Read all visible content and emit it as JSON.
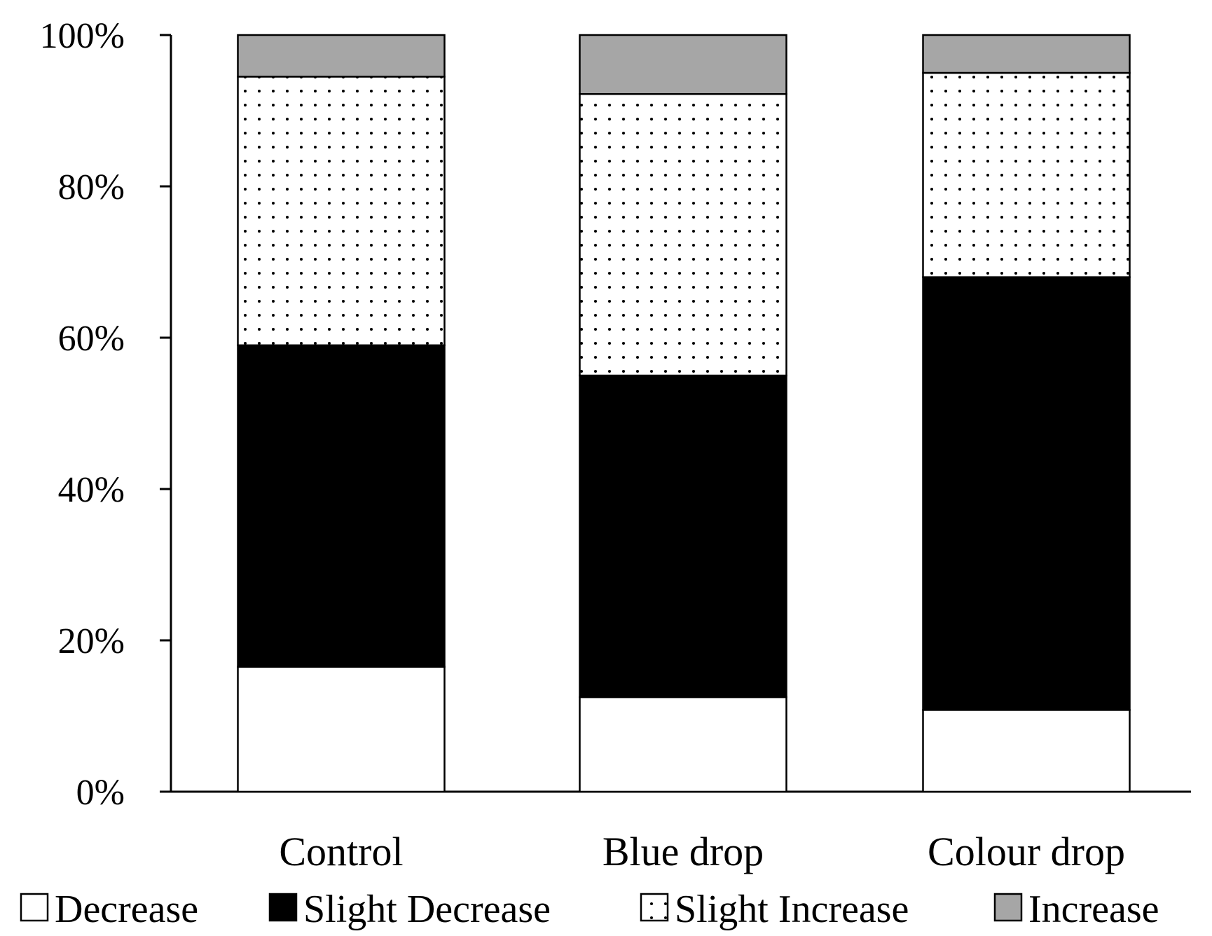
{
  "chart_data": {
    "type": "bar",
    "stacked": true,
    "categories": [
      "Control",
      "Blue drop",
      "Colour drop"
    ],
    "series": [
      {
        "name": "Decrease",
        "values": [
          16.5,
          12.5,
          10.8
        ],
        "fill": "#ffffff",
        "pattern": "none"
      },
      {
        "name": "Slight Decrease",
        "values": [
          42.5,
          42.5,
          57.2
        ],
        "fill": "#000000",
        "pattern": "none"
      },
      {
        "name": "Slight Increase",
        "values": [
          35.5,
          37.2,
          27.0
        ],
        "fill": "#ffffff",
        "pattern": "dots"
      },
      {
        "name": "Increase",
        "values": [
          5.5,
          7.8,
          5.0
        ],
        "fill": "#a6a6a6",
        "pattern": "none"
      }
    ],
    "ylim": [
      0,
      100
    ],
    "yticks": [
      "0%",
      "20%",
      "40%",
      "60%",
      "80%",
      "100%"
    ],
    "ytick_values": [
      0,
      20,
      40,
      60,
      80,
      100
    ],
    "grid": false,
    "legend_position": "bottom",
    "title": "",
    "xlabel": "",
    "ylabel": ""
  }
}
